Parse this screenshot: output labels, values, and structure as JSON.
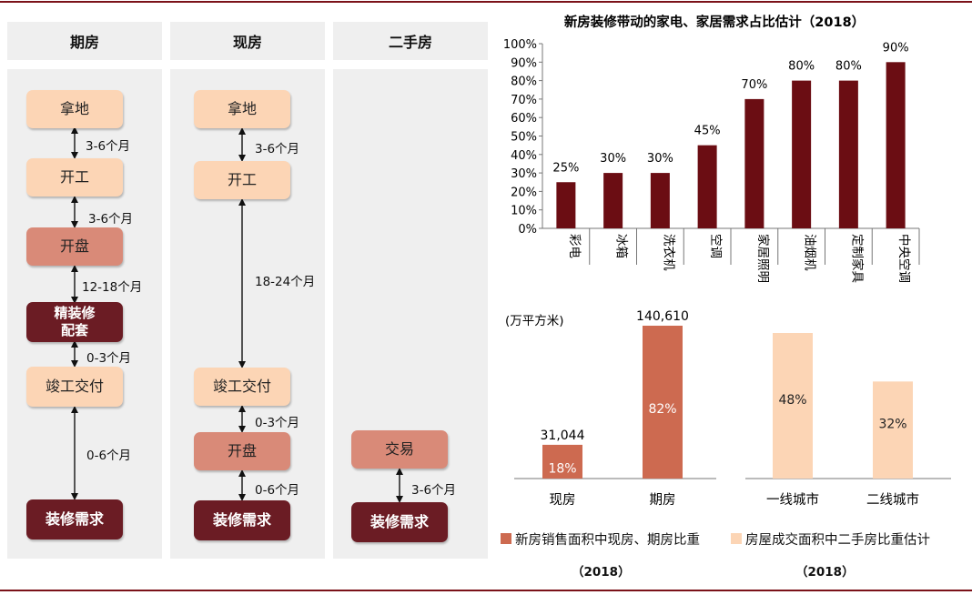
{
  "flow": {
    "columns": [
      {
        "title": "期房"
      },
      {
        "title": "现房"
      },
      {
        "title": "二手房"
      }
    ],
    "c1": {
      "s1": "拿地",
      "s2": "开工",
      "s3": "开盘",
      "s4": "精装修\n配套",
      "s5": "竣工交付",
      "s6": "装修需求",
      "d1": "3-6个月",
      "d2": "3-6个月",
      "d3": "12-18个月",
      "d4": "0-3个月",
      "d5": "0-6个月"
    },
    "c2": {
      "s1": "拿地",
      "s2": "开工",
      "s3": "竣工交付",
      "s4": "开盘",
      "s5": "装修需求",
      "d1": "3-6个月",
      "d2": "18-24个月",
      "d3": "0-3个月",
      "d4": "0-6个月"
    },
    "c3": {
      "s1": "交易",
      "s2": "装修需求",
      "d1": "3-6个月"
    }
  },
  "colors": {
    "dark_red": "#6b0d13",
    "salmon": "#cd6a50",
    "peach": "#fcd5b5",
    "rule": "#7b1219"
  },
  "chart_data": [
    {
      "type": "bar",
      "title": "新房装修带动的家电、家居需求占比估计（2018）",
      "categories": [
        "彩电",
        "冰箱",
        "洗衣机",
        "空调",
        "家居照明",
        "油烟机",
        "定制家具",
        "中央空调"
      ],
      "values": [
        25,
        30,
        30,
        45,
        70,
        80,
        80,
        90
      ],
      "value_labels": [
        "25%",
        "30%",
        "30%",
        "45%",
        "70%",
        "80%",
        "80%",
        "90%"
      ],
      "y_ticks": [
        "0%",
        "10%",
        "20%",
        "30%",
        "40%",
        "50%",
        "60%",
        "70%",
        "80%",
        "90%",
        "100%"
      ],
      "ylim": [
        0,
        100
      ],
      "grid": false
    },
    {
      "type": "bar",
      "unit_label": "(万平方米)",
      "groups": [
        {
          "categories": [
            "现房",
            "期房"
          ],
          "values": [
            31044,
            140610
          ],
          "value_labels": [
            "31,044",
            "140,610"
          ],
          "share_labels": [
            "18%",
            "82%"
          ],
          "legend": "新房销售面积中现房、期房比重",
          "year": "（2018）"
        },
        {
          "categories": [
            "一线城市",
            "二线城市"
          ],
          "values": [
            48,
            32
          ],
          "share_labels": [
            "48%",
            "32%"
          ],
          "legend": "房屋成交面积中二手房比重估计",
          "year": "（2018）"
        }
      ]
    }
  ]
}
